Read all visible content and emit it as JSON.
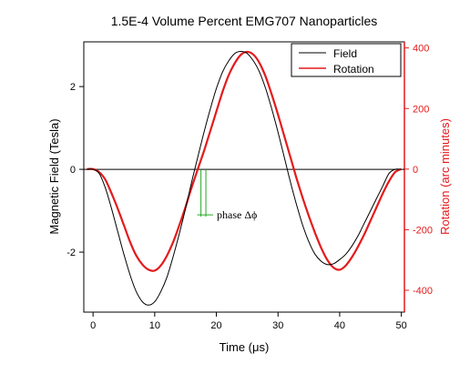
{
  "chart_data": {
    "type": "line",
    "title": "1.5E-4 Volume Percent EMG707 Nanoparticles",
    "xlabel": "Time (μs)",
    "ylabel_left": "Magnetic Field (Tesla)",
    "ylabel_right": "Rotation (arc minutes)",
    "xlim": [
      -1.5,
      50.5
    ],
    "ylim_left": [
      -3.45,
      3.08
    ],
    "ylim_right": [
      -472,
      420
    ],
    "x_ticks": [
      0,
      10,
      20,
      30,
      40,
      50
    ],
    "y_left_ticks": [
      2,
      0,
      -2
    ],
    "y_right_ticks": [
      400,
      200,
      0,
      -200,
      -400
    ],
    "legend_position": "top-right",
    "colors": {
      "field": "#000000",
      "rotation": "#e41a1c",
      "right_axis": "#e41a1c",
      "annotation": "#22aa22"
    },
    "annotation": {
      "text": "phase Δϕ",
      "x1": 17.5,
      "x2": 18.3,
      "y": -1.1
    },
    "series": [
      {
        "name": "Field",
        "axis": "left",
        "x": [
          -1,
          0,
          1,
          2,
          3,
          4,
          5,
          6,
          7,
          8,
          9,
          10,
          11,
          12,
          13,
          14,
          15,
          16,
          17,
          18,
          19,
          20,
          21,
          22,
          23,
          24,
          25,
          26,
          27,
          28,
          29,
          30,
          31,
          32,
          33,
          34,
          35,
          36,
          37,
          38,
          39,
          40,
          41,
          42,
          43,
          44,
          45,
          46,
          47,
          48,
          49,
          50
        ],
        "values": [
          0,
          0,
          -0.1,
          -0.45,
          -0.95,
          -1.5,
          -2.05,
          -2.55,
          -2.95,
          -3.2,
          -3.28,
          -3.2,
          -2.95,
          -2.6,
          -2.1,
          -1.55,
          -0.95,
          -0.3,
          0.3,
          0.9,
          1.45,
          1.95,
          2.35,
          2.62,
          2.8,
          2.85,
          2.8,
          2.62,
          2.35,
          1.95,
          1.45,
          0.9,
          0.3,
          -0.3,
          -0.85,
          -1.35,
          -1.75,
          -2.05,
          -2.22,
          -2.3,
          -2.28,
          -2.18,
          -2.05,
          -1.85,
          -1.6,
          -1.3,
          -1.0,
          -0.7,
          -0.4,
          -0.1,
          0.0,
          0.0
        ]
      },
      {
        "name": "Rotation",
        "axis": "right",
        "x": [
          -1,
          0,
          1,
          2,
          3,
          4,
          5,
          6,
          7,
          8,
          9,
          10,
          11,
          12,
          13,
          14,
          15,
          16,
          17,
          18,
          19,
          20,
          21,
          22,
          23,
          24,
          25,
          26,
          27,
          28,
          29,
          30,
          31,
          32,
          33,
          34,
          35,
          36,
          37,
          38,
          39,
          40,
          41,
          42,
          43,
          44,
          45,
          46,
          47,
          48,
          49,
          50
        ],
        "values": [
          0,
          0,
          -10,
          -35,
          -80,
          -130,
          -185,
          -240,
          -285,
          -315,
          -332,
          -335,
          -318,
          -285,
          -240,
          -185,
          -125,
          -60,
          0,
          60,
          125,
          190,
          255,
          310,
          350,
          378,
          387,
          378,
          350,
          305,
          245,
          180,
          110,
          40,
          -30,
          -95,
          -155,
          -210,
          -260,
          -300,
          -325,
          -332,
          -318,
          -290,
          -255,
          -215,
          -170,
          -125,
          -80,
          -40,
          -10,
          0
        ]
      }
    ]
  }
}
